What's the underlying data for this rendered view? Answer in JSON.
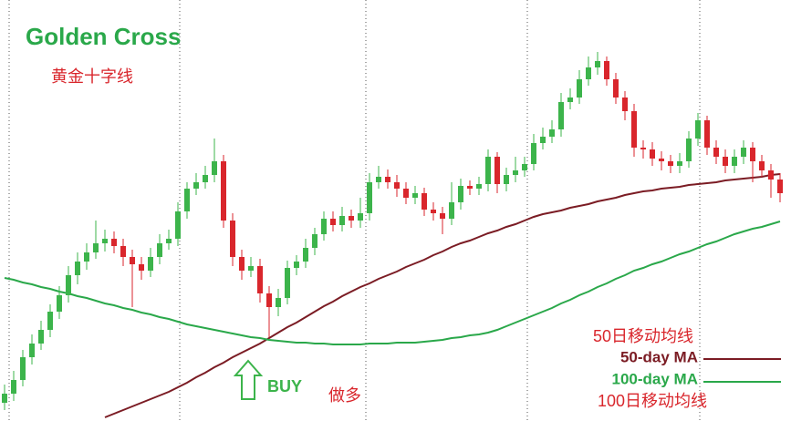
{
  "chart_data": {
    "type": "candlestick",
    "title": "Golden Cross",
    "subtitle": "黄金十字线",
    "ylim": [
      0,
      462
    ],
    "up_color": "#3cb44b",
    "down_color": "#d9262c",
    "open": [
      20,
      30,
      45,
      70,
      85,
      100,
      120,
      138,
      160,
      175,
      185,
      195,
      200,
      192,
      180,
      172,
      165,
      180,
      195,
      200,
      230,
      255,
      262,
      270,
      285,
      220,
      180,
      165,
      170,
      140,
      125,
      135,
      168,
      175,
      190,
      205,
      222,
      215,
      225,
      220,
      228,
      262,
      268,
      262,
      255,
      245,
      250,
      232,
      228,
      222,
      240,
      258,
      255,
      260,
      290,
      260,
      270,
      275,
      282,
      305,
      312,
      320,
      350,
      355,
      375,
      388,
      395,
      375,
      355,
      340,
      300,
      298,
      288,
      285,
      280,
      285,
      310,
      330,
      300,
      290,
      280,
      290,
      300,
      285,
      275,
      265
    ],
    "high": [
      40,
      55,
      78,
      95,
      110,
      128,
      148,
      170,
      185,
      195,
      220,
      210,
      208,
      200,
      188,
      180,
      190,
      205,
      210,
      240,
      262,
      272,
      280,
      310,
      292,
      228,
      188,
      180,
      178,
      148,
      145,
      176,
      182,
      200,
      212,
      230,
      230,
      235,
      232,
      245,
      272,
      280,
      276,
      270,
      262,
      258,
      256,
      240,
      235,
      262,
      266,
      264,
      268,
      298,
      295,
      278,
      290,
      290,
      315,
      322,
      330,
      360,
      365,
      385,
      400,
      405,
      400,
      382,
      362,
      348,
      308,
      306,
      296,
      292,
      294,
      318,
      338,
      335,
      308,
      298,
      298,
      308,
      306,
      292,
      282,
      272
    ],
    "low": [
      12,
      22,
      38,
      62,
      78,
      92,
      112,
      130,
      150,
      166,
      178,
      186,
      184,
      170,
      125,
      155,
      158,
      172,
      188,
      192,
      222,
      248,
      255,
      262,
      212,
      170,
      155,
      158,
      130,
      92,
      115,
      128,
      160,
      168,
      182,
      198,
      208,
      208,
      212,
      212,
      220,
      255,
      255,
      246,
      238,
      238,
      225,
      220,
      205,
      215,
      232,
      248,
      248,
      252,
      250,
      252,
      262,
      268,
      275,
      298,
      305,
      312,
      342,
      348,
      368,
      380,
      368,
      348,
      330,
      290,
      288,
      280,
      275,
      272,
      272,
      278,
      302,
      292,
      282,
      272,
      272,
      282,
      262,
      268,
      245,
      240
    ],
    "close": [
      30,
      45,
      70,
      85,
      100,
      120,
      138,
      160,
      175,
      185,
      195,
      200,
      192,
      180,
      172,
      165,
      180,
      195,
      200,
      230,
      255,
      262,
      270,
      285,
      220,
      180,
      165,
      170,
      140,
      125,
      135,
      168,
      175,
      190,
      205,
      222,
      215,
      225,
      220,
      228,
      262,
      268,
      262,
      255,
      245,
      250,
      232,
      228,
      222,
      240,
      258,
      255,
      260,
      290,
      260,
      270,
      275,
      282,
      305,
      312,
      320,
      350,
      355,
      375,
      388,
      395,
      375,
      355,
      340,
      300,
      298,
      288,
      285,
      280,
      285,
      310,
      330,
      300,
      290,
      280,
      290,
      300,
      285,
      275,
      265,
      250
    ],
    "lines": [
      {
        "name": "50-day MA",
        "color": "#7b1c24",
        "values": [
          null,
          null,
          null,
          null,
          null,
          null,
          null,
          null,
          null,
          null,
          null,
          4,
          8,
          12,
          16,
          20,
          24,
          28,
          32,
          37,
          42,
          48,
          53,
          59,
          64,
          70,
          75,
          80,
          85,
          91,
          97,
          103,
          108,
          114,
          120,
          126,
          131,
          137,
          142,
          147,
          151,
          156,
          160,
          164,
          169,
          173,
          177,
          182,
          186,
          191,
          195,
          198,
          202,
          206,
          209,
          213,
          216,
          220,
          224,
          227,
          229,
          231,
          234,
          236,
          238,
          241,
          243,
          245,
          248,
          250,
          252,
          253,
          255,
          256,
          257,
          259,
          260,
          261,
          262,
          264,
          265,
          266,
          267,
          268,
          270,
          271
        ]
      },
      {
        "name": "100-day MA",
        "color": "#2aa84a",
        "values": [
          157,
          155,
          152,
          150,
          147,
          145,
          142,
          140,
          137,
          135,
          132,
          129,
          127,
          124,
          122,
          119,
          117,
          114,
          112,
          109,
          106,
          104,
          102,
          100,
          98,
          96,
          94,
          92,
          91,
          89,
          88,
          87,
          86,
          86,
          85,
          85,
          84,
          84,
          84,
          84,
          85,
          85,
          85,
          86,
          86,
          86,
          87,
          88,
          89,
          91,
          92,
          94,
          95,
          97,
          100,
          104,
          108,
          112,
          116,
          120,
          124,
          129,
          133,
          138,
          142,
          147,
          151,
          156,
          160,
          165,
          168,
          172,
          175,
          179,
          183,
          186,
          190,
          194,
          197,
          201,
          205,
          208,
          211,
          213,
          216,
          219
        ]
      }
    ],
    "annotations": {
      "buy": "BUY",
      "long": "做多",
      "ma50_cn": "50日移动均线",
      "ma100_cn": "100日移动均线"
    }
  }
}
